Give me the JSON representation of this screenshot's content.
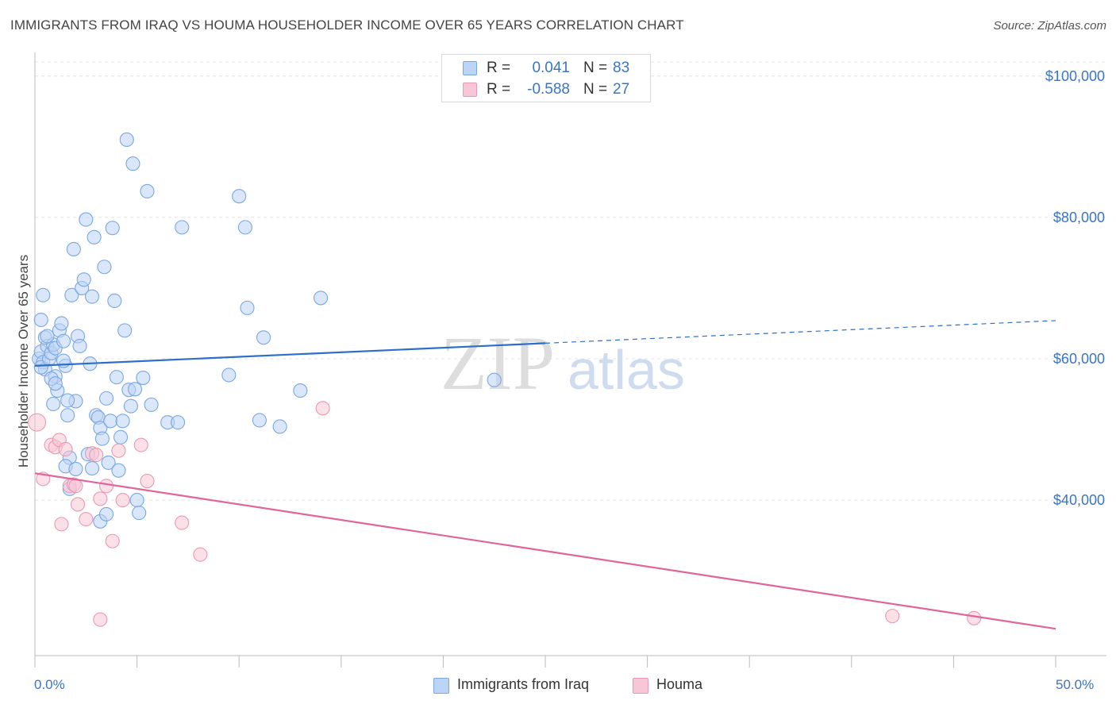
{
  "title": "IMMIGRANTS FROM IRAQ VS HOUMA HOUSEHOLDER INCOME OVER 65 YEARS CORRELATION CHART",
  "source": "Source: ZipAtlas.com",
  "watermark": {
    "zip": "ZIP",
    "atlas": "atlas"
  },
  "legend": {
    "r_label": "R =",
    "n_label": "N =",
    "series": [
      {
        "name": "Immigrants from Iraq",
        "r": "0.041",
        "n": "83",
        "fill": "#bcd4f5",
        "stroke": "#7aa7e0"
      },
      {
        "name": "Houma",
        "r": "-0.588",
        "n": "27",
        "fill": "#f8c6d6",
        "stroke": "#e89ab4"
      }
    ]
  },
  "chart_data": {
    "type": "scatter",
    "title": "IMMIGRANTS FROM IRAQ VS HOUMA HOUSEHOLDER INCOME OVER 65 YEARS CORRELATION CHART",
    "xlabel": "",
    "ylabel": "Householder Income Over 65 years",
    "xlim": [
      0,
      50
    ],
    "ylim": [
      18000,
      102000
    ],
    "x_tick_labels": [
      "0.0%",
      "50.0%"
    ],
    "y_ticks": [
      40000,
      60000,
      80000,
      100000
    ],
    "y_tick_labels": [
      "$40,000",
      "$60,000",
      "$80,000",
      "$100,000"
    ],
    "grid": true,
    "series": [
      {
        "name": "Immigrants from Iraq",
        "color": "#7aa7e0",
        "fill": "#bcd4f5",
        "trend": {
          "x": [
            0,
            25,
            50
          ],
          "y": [
            59000,
            62200,
            65400
          ],
          "solid_until": 25
        },
        "points": [
          [
            0.2,
            60
          ],
          [
            0.3,
            61
          ],
          [
            0.4,
            59.5
          ],
          [
            0.5,
            58.5
          ],
          [
            0.6,
            61.8
          ],
          [
            0.3,
            58.8
          ],
          [
            0.4,
            69
          ],
          [
            0.5,
            63
          ],
          [
            0.3,
            65.5
          ],
          [
            0.7,
            60
          ],
          [
            0.8,
            60.8
          ],
          [
            0.9,
            62
          ],
          [
            1.0,
            57.5
          ],
          [
            1.1,
            55.5
          ],
          [
            1.0,
            61.5
          ],
          [
            1.2,
            64
          ],
          [
            1.3,
            65
          ],
          [
            1.4,
            62.5
          ],
          [
            1.5,
            59
          ],
          [
            1.6,
            52
          ],
          [
            1.7,
            46
          ],
          [
            1.8,
            69
          ],
          [
            1.9,
            75.5
          ],
          [
            2.0,
            54
          ],
          [
            2.1,
            63.2
          ],
          [
            2.2,
            61.8
          ],
          [
            2.3,
            70
          ],
          [
            2.4,
            71.2
          ],
          [
            2.5,
            79.7
          ],
          [
            2.7,
            59.3
          ],
          [
            2.8,
            68.8
          ],
          [
            2.9,
            77.2
          ],
          [
            3.0,
            52
          ],
          [
            3.1,
            51.7
          ],
          [
            3.2,
            50.2
          ],
          [
            3.3,
            48.7
          ],
          [
            3.4,
            73
          ],
          [
            3.5,
            54.4
          ],
          [
            3.6,
            45.3
          ],
          [
            3.7,
            51.2
          ],
          [
            3.8,
            78.5
          ],
          [
            3.9,
            68.2
          ],
          [
            4.0,
            57.4
          ],
          [
            4.1,
            44.2
          ],
          [
            4.2,
            48.9
          ],
          [
            4.3,
            51.2
          ],
          [
            4.4,
            64
          ],
          [
            4.5,
            91
          ],
          [
            4.6,
            55.6
          ],
          [
            4.7,
            53.3
          ],
          [
            4.8,
            87.6
          ],
          [
            4.9,
            55.7
          ],
          [
            5.0,
            40
          ],
          [
            5.1,
            38.2
          ],
          [
            5.3,
            57.3
          ],
          [
            5.5,
            83.7
          ],
          [
            5.7,
            53.5
          ],
          [
            6.5,
            51
          ],
          [
            7.0,
            51
          ],
          [
            7.2,
            78.6
          ],
          [
            9.5,
            57.7
          ],
          [
            10.0,
            83
          ],
          [
            10.3,
            78.6
          ],
          [
            10.4,
            67.2
          ],
          [
            11.0,
            51.3
          ],
          [
            11.2,
            63
          ],
          [
            12.0,
            50.4
          ],
          [
            13.0,
            55.5
          ],
          [
            14.0,
            68.6
          ],
          [
            22.5,
            57
          ],
          [
            1.5,
            44.8
          ],
          [
            1.6,
            54.1
          ],
          [
            0.9,
            53.6
          ],
          [
            2.6,
            46.5
          ],
          [
            2.8,
            44.5
          ],
          [
            3.2,
            37
          ],
          [
            3.5,
            38
          ],
          [
            1.7,
            41.6
          ],
          [
            2.0,
            44.4
          ],
          [
            1.4,
            59.7
          ],
          [
            0.8,
            57.2
          ],
          [
            1.0,
            56.5
          ],
          [
            0.6,
            63.2
          ]
        ]
      },
      {
        "name": "Houma",
        "color": "#e89ab4",
        "fill": "#f8c6d6",
        "trend": {
          "x": [
            0,
            50
          ],
          "y": [
            43800,
            21800
          ]
        },
        "points": [
          [
            0.1,
            51
          ],
          [
            0.4,
            43
          ],
          [
            0.8,
            47.8
          ],
          [
            1.0,
            47.5
          ],
          [
            1.2,
            48.5
          ],
          [
            1.3,
            36.6
          ],
          [
            1.5,
            47.2
          ],
          [
            1.7,
            42
          ],
          [
            1.9,
            42.2
          ],
          [
            2.0,
            42
          ],
          [
            2.1,
            39.4
          ],
          [
            2.5,
            37.3
          ],
          [
            2.8,
            46.6
          ],
          [
            3.0,
            46.4
          ],
          [
            3.2,
            40.2
          ],
          [
            3.5,
            42
          ],
          [
            3.8,
            34.2
          ],
          [
            4.1,
            47
          ],
          [
            4.3,
            40
          ],
          [
            5.2,
            47.8
          ],
          [
            5.5,
            42.7
          ],
          [
            7.2,
            36.8
          ],
          [
            8.1,
            32.3
          ],
          [
            14.1,
            53
          ],
          [
            42.0,
            23.6
          ],
          [
            46.0,
            23.3
          ],
          [
            3.2,
            23.1
          ]
        ]
      }
    ]
  }
}
